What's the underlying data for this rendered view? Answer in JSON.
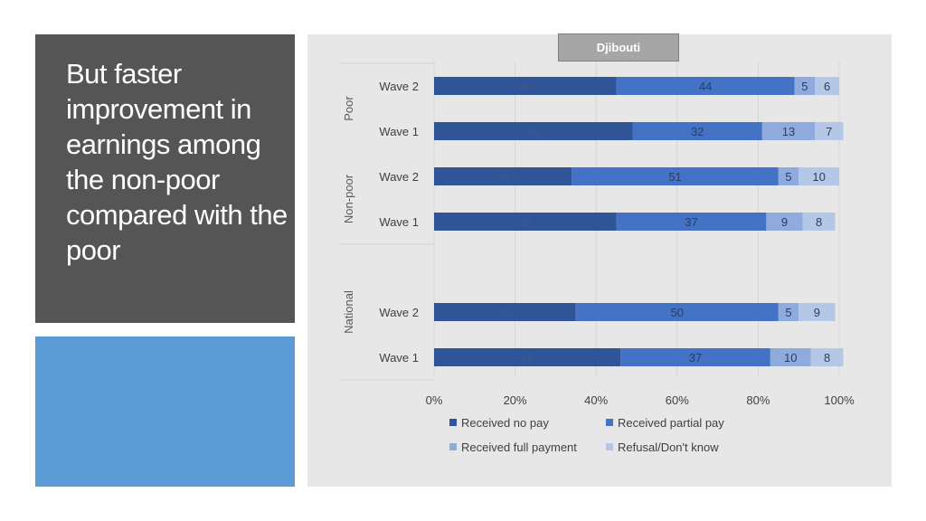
{
  "slide": {
    "title": "But faster improvement in earnings among the non-poor compared with the poor"
  },
  "chart_data": {
    "type": "bar",
    "orientation": "horizontal",
    "stacked": "100%",
    "title": "Djibouti",
    "groups": [
      "Poor",
      "Non-poor",
      "National"
    ],
    "categories": [
      {
        "group": "Poor",
        "label": "Wave 2"
      },
      {
        "group": "Poor",
        "label": "Wave 1"
      },
      {
        "group": "Non-poor",
        "label": "Wave 2"
      },
      {
        "group": "Non-poor",
        "label": "Wave 1"
      },
      {
        "group": "National",
        "label": "Wave 2"
      },
      {
        "group": "National",
        "label": "Wave 1"
      }
    ],
    "series": [
      {
        "name": "Received no pay",
        "color": "#2f5597",
        "label_color": "#3a5a8c",
        "values": [
          45,
          49,
          34,
          45,
          35,
          46
        ]
      },
      {
        "name": "Received partial pay",
        "color": "#4472c4",
        "label_color": "#2e3e5c",
        "values": [
          44,
          32,
          51,
          37,
          50,
          37
        ]
      },
      {
        "name": "Received full payment",
        "color": "#8faadc",
        "label_color": "#2e3e5c",
        "values": [
          5,
          13,
          5,
          9,
          5,
          10
        ]
      },
      {
        "name": "Refusal/Don't know",
        "color": "#b4c7e7",
        "label_color": "#2e3e5c",
        "values": [
          6,
          7,
          10,
          8,
          9,
          8
        ]
      }
    ],
    "xaxis": {
      "ticks": [
        "0%",
        "20%",
        "40%",
        "60%",
        "80%",
        "100%"
      ],
      "range": [
        0,
        100
      ]
    },
    "legend_position": "bottom"
  }
}
